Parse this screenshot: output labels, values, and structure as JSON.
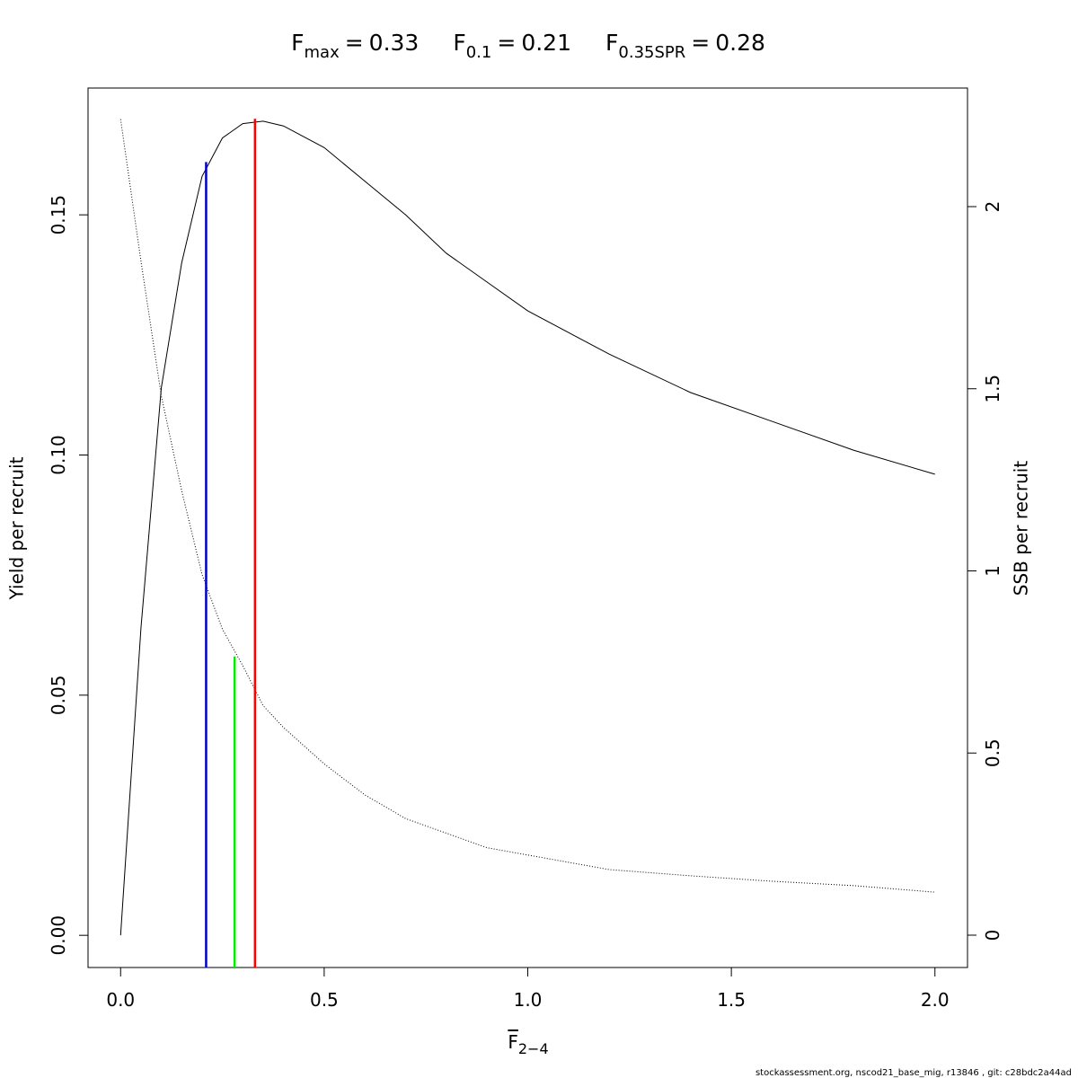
{
  "chart_data": {
    "type": "line",
    "title": [
      {
        "symbol": "F",
        "subscript": "max",
        "operator": "=",
        "value": 0.33
      },
      {
        "symbol": "F",
        "subscript": "0.1",
        "operator": "=",
        "value": 0.21
      },
      {
        "symbol": "F",
        "subscript": "0.35SPR",
        "operator": "=",
        "value": 0.28
      }
    ],
    "x_label": {
      "symbol": "F",
      "subscript": "2−4"
    },
    "y_label": "Yield per recruit",
    "y2_label": "SSB per recruit",
    "footer": "stockassessment.org, nscod21_base_mig, r13846 , git: c28bdc2a44ad",
    "x": [
      0,
      0.05,
      0.1,
      0.15,
      0.2,
      0.25,
      0.3,
      0.35,
      0.4,
      0.5,
      0.6,
      0.7,
      0.8,
      0.9,
      1.0,
      1.2,
      1.4,
      1.6,
      1.8,
      2.0
    ],
    "series": [
      {
        "name": "Yield per recruit",
        "color": "#000000",
        "linestyle": "solid",
        "values": [
          0,
          0.064,
          0.114,
          0.14,
          0.158,
          0.166,
          0.169,
          0.1695,
          0.1685,
          0.164,
          0.157,
          0.15,
          0.142,
          0.136,
          0.13,
          0.121,
          0.113,
          0.107,
          0.101,
          0.096
        ]
      },
      {
        "name": "SSB per recruit",
        "color": "#000000",
        "linestyle": "dotted",
        "axis": "y2",
        "values": [
          2.24,
          1.85,
          1.48,
          1.22,
          0.99,
          0.84,
          0.74,
          0.63,
          0.57,
          0.47,
          0.385,
          0.32,
          0.28,
          0.24,
          0.22,
          0.18,
          0.163,
          0.148,
          0.136,
          0.118
        ]
      }
    ],
    "reference_lines": [
      {
        "x": 0.21,
        "y": 0.161,
        "color": "#0000cc"
      },
      {
        "x": 0.28,
        "y": 0.765,
        "color": "#00ee00",
        "axis": "y2"
      },
      {
        "x": 0.33,
        "y": 0.17,
        "color": "#ff0000"
      }
    ],
    "xlim": [
      -0.08,
      2.08
    ],
    "ylim": [
      -0.0067,
      0.1764
    ],
    "y2lim": [
      -0.0888,
      2.3255
    ],
    "xticks": [
      {
        "value": 0,
        "label": "0.0"
      },
      {
        "value": 0.5,
        "label": "0.5"
      },
      {
        "value": 1,
        "label": "1.0"
      },
      {
        "value": 1.5,
        "label": "1.5"
      },
      {
        "value": 2,
        "label": "2.0"
      }
    ],
    "yticks": [
      {
        "value": 0,
        "label": "0.00"
      },
      {
        "value": 0.05,
        "label": "0.05"
      },
      {
        "value": 0.1,
        "label": "0.10"
      },
      {
        "value": 0.15,
        "label": "0.15"
      }
    ],
    "y2ticks": [
      0,
      0.5,
      1,
      1.5,
      2
    ],
    "grid": false
  }
}
